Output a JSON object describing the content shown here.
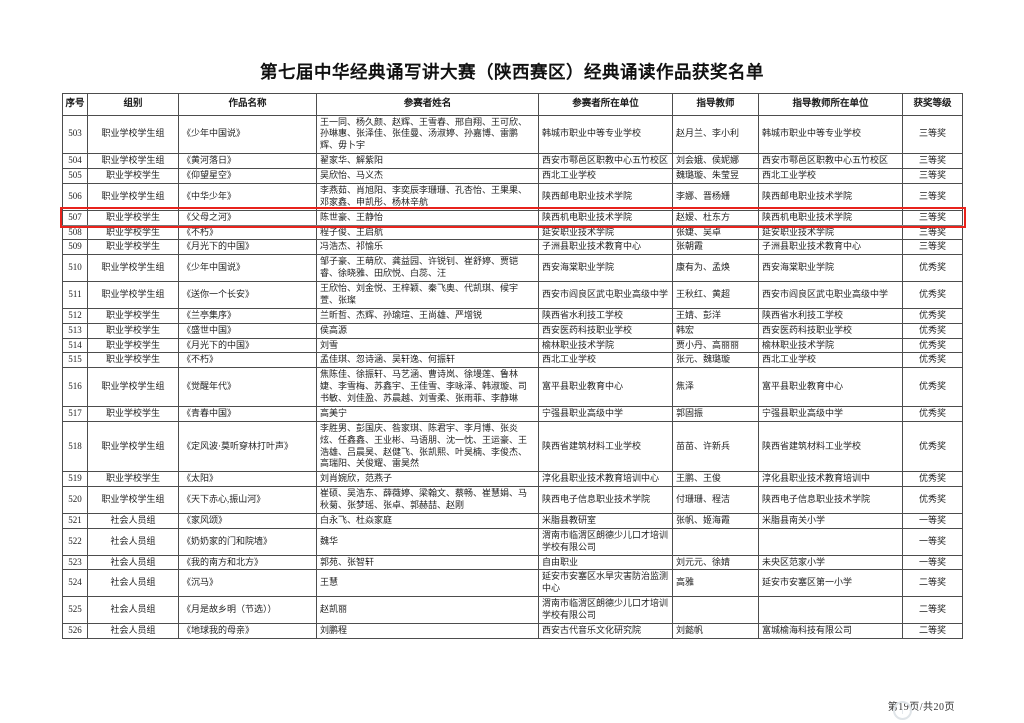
{
  "page": {
    "title": "第七届中华经典诵写讲大赛（陕西赛区）经典诵读作品获奖名单",
    "footer": "第19页/共20页",
    "highlight_color": "#e8231c",
    "watermark_icon": "info-seal"
  },
  "table": {
    "headers": [
      "序号",
      "组别",
      "作品名称",
      "参赛者姓名",
      "参赛者所在单位",
      "指导教师",
      "指导教师所在单位",
      "获奖等级"
    ],
    "rows": [
      {
        "no": "503",
        "group": "职业学校学生组",
        "work": "《少年中国说》",
        "participants": "王一同、杨久颜、赵辉、王雪春、邢自翔、王可欣、孙琳惠、张泽佳、张佳曼、汤淑婷、孙嘉博、雷鹏辉、毋卜宇",
        "unit": "韩城市职业中等专业学校",
        "teachers": "赵月兰、李小利",
        "teacher_unit": "韩城市职业中等专业学校",
        "award": "三等奖",
        "highlight": false
      },
      {
        "no": "504",
        "group": "职业学校学生组",
        "work": "《黄河落日》",
        "participants": "翟家华、解紫阳",
        "unit": "西安市鄠邑区职教中心五竹校区",
        "teachers": "刘会娥、侯妮娜",
        "teacher_unit": "西安市鄠邑区职教中心五竹校区",
        "award": "三等奖",
        "highlight": false
      },
      {
        "no": "505",
        "group": "职业学校学生",
        "work": "《仰望星空》",
        "participants": "吴欣怡、马义杰",
        "unit": "西北工业学校",
        "teachers": "魏璐璇、朱莹昱",
        "teacher_unit": "西北工业学校",
        "award": "三等奖",
        "highlight": false
      },
      {
        "no": "506",
        "group": "职业学校学生组",
        "work": "《中华少年》",
        "participants": "李燕茹、肖旭阳、李奕辰李珊珊、孔杏怡、王果果、邓家鑫、申凯彤、杨林辛航",
        "unit": "陕西邮电职业技术学院",
        "teachers": "李娜、晋杨姗",
        "teacher_unit": "陕西邮电职业技术学院",
        "award": "三等奖",
        "highlight": false
      },
      {
        "no": "507",
        "group": "职业学校学生",
        "work": "《父母之河》",
        "participants": "陈世豪、王静怡",
        "unit": "陕西机电职业技术学院",
        "teachers": "赵嫒、杜东方",
        "teacher_unit": "陕西机电职业技术学院",
        "award": "三等奖",
        "highlight": true
      },
      {
        "no": "508",
        "group": "职业学校学生",
        "work": "《不朽》",
        "participants": "程子俊、王启航",
        "unit": "延安职业技术学院",
        "teachers": "张婕、吴卓",
        "teacher_unit": "延安职业技术学院",
        "award": "三等奖",
        "highlight": false
      },
      {
        "no": "509",
        "group": "职业学校学生",
        "work": "《月光下的中国》",
        "participants": "冯浩杰、祁愉乐",
        "unit": "子洲县职业技术教育中心",
        "teachers": "张朝霞",
        "teacher_unit": "子洲县职业技术教育中心",
        "award": "三等奖",
        "highlight": false
      },
      {
        "no": "510",
        "group": "职业学校学生组",
        "work": "《少年中国说》",
        "participants": "邹子豪、王萌欣、龚益园、许锐钊、崔舒婷、贾铠睿、徐晓雅、田欣悦、白蕊、汪",
        "unit": "西安海棠职业学院",
        "teachers": "康有为、孟焕",
        "teacher_unit": "西安海棠职业学院",
        "award": "优秀奖",
        "highlight": false
      },
      {
        "no": "511",
        "group": "职业学校学生组",
        "work": "《送你一个长安》",
        "participants": "王欣怡、刘金悦、王梓颖、秦飞奥、代凯琪、候宇萱、张璨",
        "unit": "西安市阎良区武屯职业高级中学",
        "teachers": "王秋红、黄超",
        "teacher_unit": "西安市阎良区武屯职业高级中学",
        "award": "优秀奖",
        "highlight": false
      },
      {
        "no": "512",
        "group": "职业学校学生",
        "work": "《兰亭集序》",
        "participants": "兰昕哲、杰辉、孙瑜瑄、王尚雄、严增锐",
        "unit": "陕西省水利技工学校",
        "teachers": "王婧、彭洋",
        "teacher_unit": "陕西省水利技工学校",
        "award": "优秀奖",
        "highlight": false
      },
      {
        "no": "513",
        "group": "职业学校学生",
        "work": "《盛世中国》",
        "participants": "侯高源",
        "unit": "西安医药科技职业学校",
        "teachers": "韩宏",
        "teacher_unit": "西安医药科技职业学校",
        "award": "优秀奖",
        "highlight": false
      },
      {
        "no": "514",
        "group": "职业学校学生",
        "work": "《月光下的中国》",
        "participants": "刘雪",
        "unit": "榆林职业技术学院",
        "teachers": "贾小丹、高丽丽",
        "teacher_unit": "榆林职业技术学院",
        "award": "优秀奖",
        "highlight": false
      },
      {
        "no": "515",
        "group": "职业学校学生",
        "work": "《不朽》",
        "participants": "孟佳琪、忽诗涵、吴轩逸、何振轩",
        "unit": "西北工业学校",
        "teachers": "张元、魏璐璇",
        "teacher_unit": "西北工业学校",
        "award": "优秀奖",
        "highlight": false
      },
      {
        "no": "516",
        "group": "职业学校学生组",
        "work": "《觉醒年代》",
        "participants": "焦陈佳、徐振轩、马艺涵、曹诗岚、徐墁莲、鲁林婕、李雪梅、苏鑫宇、王佳雪、李咏泽、韩淑璇、司书敏、刘佳盈、苏晨越、刘雪柔、张雨菲、李静琳",
        "unit": "富平县职业教育中心",
        "teachers": "焦泽",
        "teacher_unit": "富平县职业教育中心",
        "award": "优秀奖",
        "highlight": false
      },
      {
        "no": "517",
        "group": "职业学校学生",
        "work": "《青春中国》",
        "participants": "高美宁",
        "unit": "宁强县职业高级中学",
        "teachers": "郭固振",
        "teacher_unit": "宁强县职业高级中学",
        "award": "优秀奖",
        "highlight": false
      },
      {
        "no": "518",
        "group": "职业学校学生组",
        "work": "《定风波·莫听穿林打叶声》",
        "participants": "李胜男、彭国庆、昝家琪、陈君宇、李月博、张炎炫、任鑫鑫、王业彬、马语朋、沈一忱、王运豪、王浩雄、吕晨昊、赵健飞、张凯熙、叶昊楠、李俊杰、高瑞阳、关俊耀、雷昊然",
        "unit": "陕西省建筑材料工业学校",
        "teachers": "苗苗、许新兵",
        "teacher_unit": "陕西省建筑材料工业学校",
        "award": "优秀奖",
        "highlight": false
      },
      {
        "no": "519",
        "group": "职业学校学生",
        "work": "《太阳》",
        "participants": "刘肖婉欣，范燕子",
        "unit": "淳化县职业技术教育培训中心",
        "teachers": "王鹏、王俊",
        "teacher_unit": "淳化县职业技术教育培训中",
        "award": "优秀奖",
        "highlight": false
      },
      {
        "no": "520",
        "group": "职业学校学生组",
        "work": "《天下赤心,振山河》",
        "participants": "崔硕、吴浩东、薛薇婷、梁翰文、蔡畅、崔慧娟、马秋菊、张梦瑶、张卓、郭赫喆、赵刚",
        "unit": "陕西电子信息职业技术学院",
        "teachers": "付珊珊、程洁",
        "teacher_unit": "陕西电子信息职业技术学院",
        "award": "优秀奖",
        "highlight": false
      },
      {
        "no": "521",
        "group": "社会人员组",
        "work": "《家风颂》",
        "participants": "白永飞、杜焱家庭",
        "unit": "米脂县教研室",
        "teachers": "张帆、姬海霞",
        "teacher_unit": "米脂县南关小学",
        "award": "一等奖",
        "highlight": false
      },
      {
        "no": "522",
        "group": "社会人员组",
        "work": "《奶奶家的门和院墙》",
        "participants": "魏华",
        "unit": "渭南市临渭区朗德少儿口才培训学校有限公司",
        "teachers": "",
        "teacher_unit": "",
        "award": "一等奖",
        "highlight": false
      },
      {
        "no": "523",
        "group": "社会人员组",
        "work": "《我的南方和北方》",
        "participants": "郭苑、张智轩",
        "unit": "自由职业",
        "teachers": "刘元元、徐婧",
        "teacher_unit": "未央区范家小学",
        "award": "一等奖",
        "highlight": false
      },
      {
        "no": "524",
        "group": "社会人员组",
        "work": "《沉马》",
        "participants": "王慧",
        "unit": "延安市安塞区水旱灾害防治监测中心",
        "teachers": "高雅",
        "teacher_unit": "延安市安塞区第一小学",
        "award": "二等奖",
        "highlight": false
      },
      {
        "no": "525",
        "group": "社会人员组",
        "work": "《月是故乡明（节选））",
        "participants": "赵凯丽",
        "unit": "渭南市临渭区朗德少儿口才培训学校有限公司",
        "teachers": "",
        "teacher_unit": "",
        "award": "二等奖",
        "highlight": false
      },
      {
        "no": "526",
        "group": "社会人员组",
        "work": "《地球我的母亲》",
        "participants": "刘鹏程",
        "unit": "西安古代音乐文化研究院",
        "teachers": "刘懿帆",
        "teacher_unit": "富城榆海科技有限公司",
        "award": "二等奖",
        "highlight": false
      }
    ]
  }
}
